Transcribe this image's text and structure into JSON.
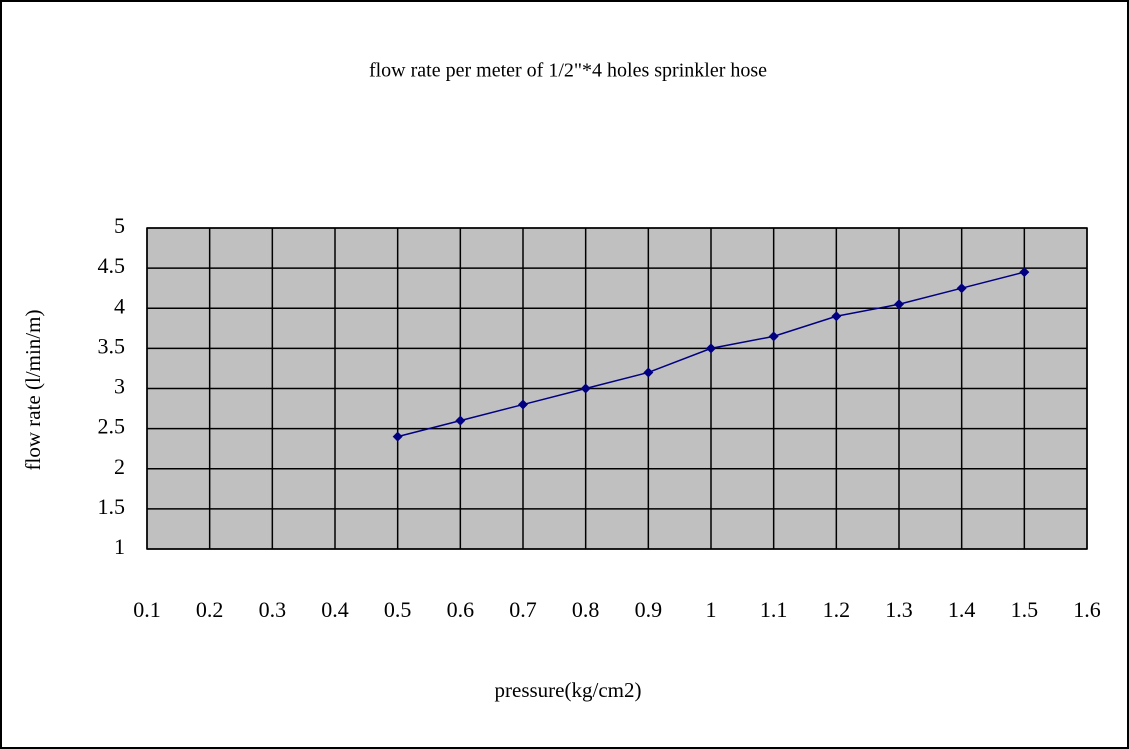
{
  "chart_data": {
    "type": "line",
    "title": "flow rate per meter of 1/2\"*4 holes sprinkler hose",
    "x_label": "pressure(kg/cm2)",
    "y_label": "flow rate (l/min/m)",
    "x": [
      0.5,
      0.6,
      0.7,
      0.8,
      0.9,
      1.0,
      1.1,
      1.2,
      1.3,
      1.4,
      1.5
    ],
    "series": [
      {
        "color": "#000080",
        "values": [
          2.4,
          2.6,
          2.8,
          3.0,
          3.2,
          3.5,
          3.65,
          3.9,
          4.05,
          4.25,
          4.45
        ]
      }
    ],
    "xlim": [
      0.1,
      1.6
    ],
    "xticks": [
      0.1,
      0.2,
      0.3,
      0.4,
      0.5,
      0.6,
      0.7,
      0.8,
      0.9,
      1,
      1.1,
      1.2,
      1.3,
      1.4,
      1.5,
      1.6
    ],
    "ylim": [
      1,
      5
    ],
    "yticks": [
      1,
      1.5,
      2,
      2.5,
      3,
      3.5,
      4,
      4.5,
      5
    ],
    "grid": true,
    "plot_background": "#c0c0c0"
  }
}
